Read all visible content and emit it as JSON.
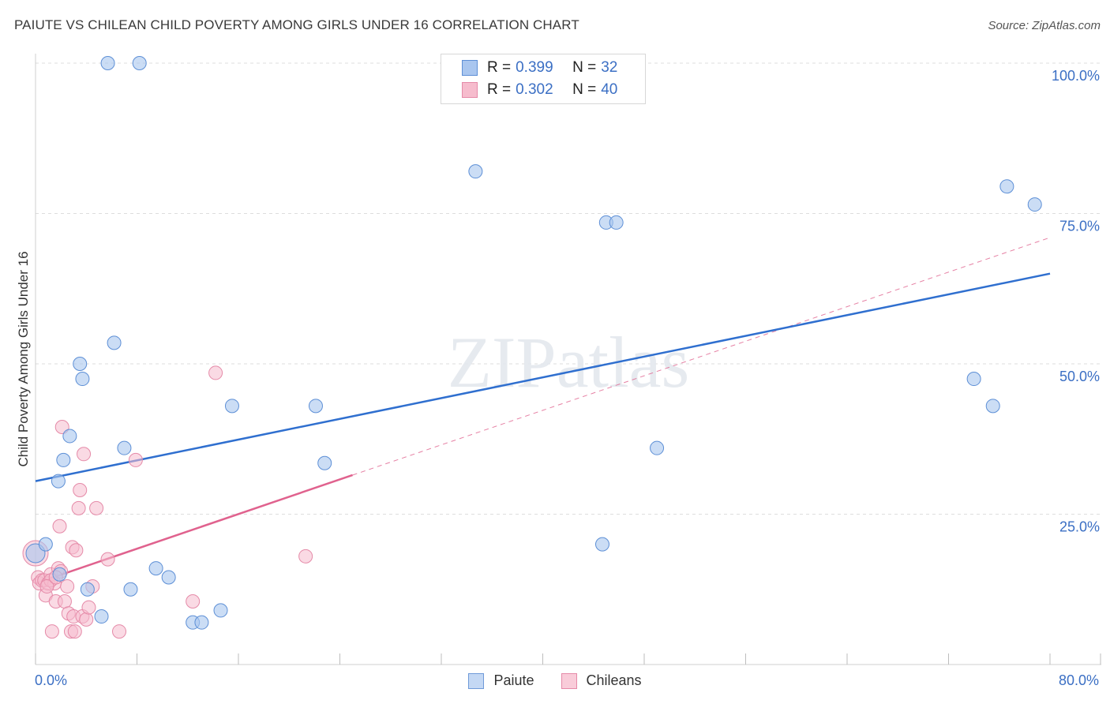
{
  "header": {
    "title": "PAIUTE VS CHILEAN CHILD POVERTY AMONG GIRLS UNDER 16 CORRELATION CHART",
    "source": "Source: ZipAtlas.com"
  },
  "legend": {
    "paiute": {
      "r_label": "R =",
      "r_value": "0.399",
      "n_label": "N =",
      "n_value": "32"
    },
    "chileans": {
      "r_label": "R =",
      "r_value": "0.302",
      "n_label": "N =",
      "n_value": "40"
    }
  },
  "bottom_legend": {
    "paiute": "Paiute",
    "chileans": "Chileans"
  },
  "axis": {
    "x_min_label": "0.0%",
    "x_max_label": "80.0%"
  },
  "colors": {
    "paiute_fill": "#a9c6ef",
    "paiute_stroke": "#5d8fd6",
    "paiute_line": "#2f6fcf",
    "chileans_fill": "#f6bccd",
    "chileans_stroke": "#e58aa8",
    "chileans_line": "#e0628e",
    "grid": "#dddddd",
    "tick_label": "#3b6fc4"
  },
  "chart_data": {
    "type": "scatter",
    "title": "PAIUTE VS CHILEAN CHILD POVERTY AMONG GIRLS UNDER 16 CORRELATION CHART",
    "xlabel": "",
    "ylabel": "Child Poverty Among Girls Under 16",
    "xlim": [
      0,
      80
    ],
    "ylim": [
      0,
      105
    ],
    "ytick_labels": [
      "25.0%",
      "50.0%",
      "75.0%",
      "100.0%"
    ],
    "yticks": [
      25,
      50,
      75,
      100
    ],
    "watermark": "ZIPatlas",
    "series": [
      {
        "name": "Paiute",
        "points": [
          [
            0.0,
            18.5
          ],
          [
            0.8,
            20.0
          ],
          [
            1.9,
            15.0
          ],
          [
            1.8,
            30.5
          ],
          [
            2.2,
            34.0
          ],
          [
            2.7,
            38.0
          ],
          [
            3.5,
            50.0
          ],
          [
            3.7,
            47.5
          ],
          [
            4.1,
            12.5
          ],
          [
            5.2,
            8.0
          ],
          [
            6.2,
            53.5
          ],
          [
            7.0,
            36.0
          ],
          [
            7.5,
            12.5
          ],
          [
            5.7,
            100.0
          ],
          [
            8.2,
            100.0
          ],
          [
            9.5,
            16.0
          ],
          [
            10.5,
            14.5
          ],
          [
            12.4,
            7.0
          ],
          [
            13.1,
            7.0
          ],
          [
            14.6,
            9.0
          ],
          [
            15.5,
            43.0
          ],
          [
            22.1,
            43.0
          ],
          [
            22.8,
            33.5
          ],
          [
            34.7,
            82.0
          ],
          [
            44.7,
            20.0
          ],
          [
            45.0,
            73.5
          ],
          [
            45.8,
            73.5
          ],
          [
            49.0,
            36.0
          ],
          [
            74.0,
            47.5
          ],
          [
            75.5,
            43.0
          ],
          [
            76.6,
            79.5
          ],
          [
            78.8,
            76.5
          ]
        ],
        "trend": {
          "x": [
            0,
            80
          ],
          "y": [
            30.5,
            65.0
          ]
        }
      },
      {
        "name": "Chileans",
        "points": [
          [
            0.0,
            18.5
          ],
          [
            0.2,
            14.5
          ],
          [
            0.3,
            13.5
          ],
          [
            0.5,
            14.0
          ],
          [
            0.7,
            14.0
          ],
          [
            0.8,
            11.5
          ],
          [
            1.0,
            13.5
          ],
          [
            1.2,
            15.0
          ],
          [
            1.3,
            5.5
          ],
          [
            1.5,
            13.5
          ],
          [
            1.6,
            10.5
          ],
          [
            1.8,
            16.0
          ],
          [
            1.9,
            23.0
          ],
          [
            2.1,
            39.5
          ],
          [
            2.3,
            10.5
          ],
          [
            2.5,
            13.0
          ],
          [
            2.6,
            8.5
          ],
          [
            2.8,
            5.5
          ],
          [
            2.9,
            19.5
          ],
          [
            3.0,
            8.0
          ],
          [
            3.1,
            5.5
          ],
          [
            3.2,
            19.0
          ],
          [
            3.4,
            26.0
          ],
          [
            3.5,
            29.0
          ],
          [
            3.7,
            8.0
          ],
          [
            3.8,
            35.0
          ],
          [
            4.0,
            7.5
          ],
          [
            4.2,
            9.5
          ],
          [
            4.5,
            13.0
          ],
          [
            4.8,
            26.0
          ],
          [
            5.7,
            17.5
          ],
          [
            6.6,
            5.5
          ],
          [
            7.9,
            34.0
          ],
          [
            12.4,
            10.5
          ],
          [
            14.2,
            48.5
          ],
          [
            21.3,
            18.0
          ],
          [
            1.2,
            14.0
          ],
          [
            2.0,
            15.5
          ],
          [
            0.9,
            13.0
          ],
          [
            1.6,
            14.5
          ]
        ],
        "trend": {
          "x": [
            0,
            25
          ],
          "y": [
            13.5,
            31.5
          ]
        },
        "trend_extension": {
          "x": [
            25,
            80
          ],
          "y": [
            31.5,
            71.0
          ]
        }
      }
    ]
  }
}
